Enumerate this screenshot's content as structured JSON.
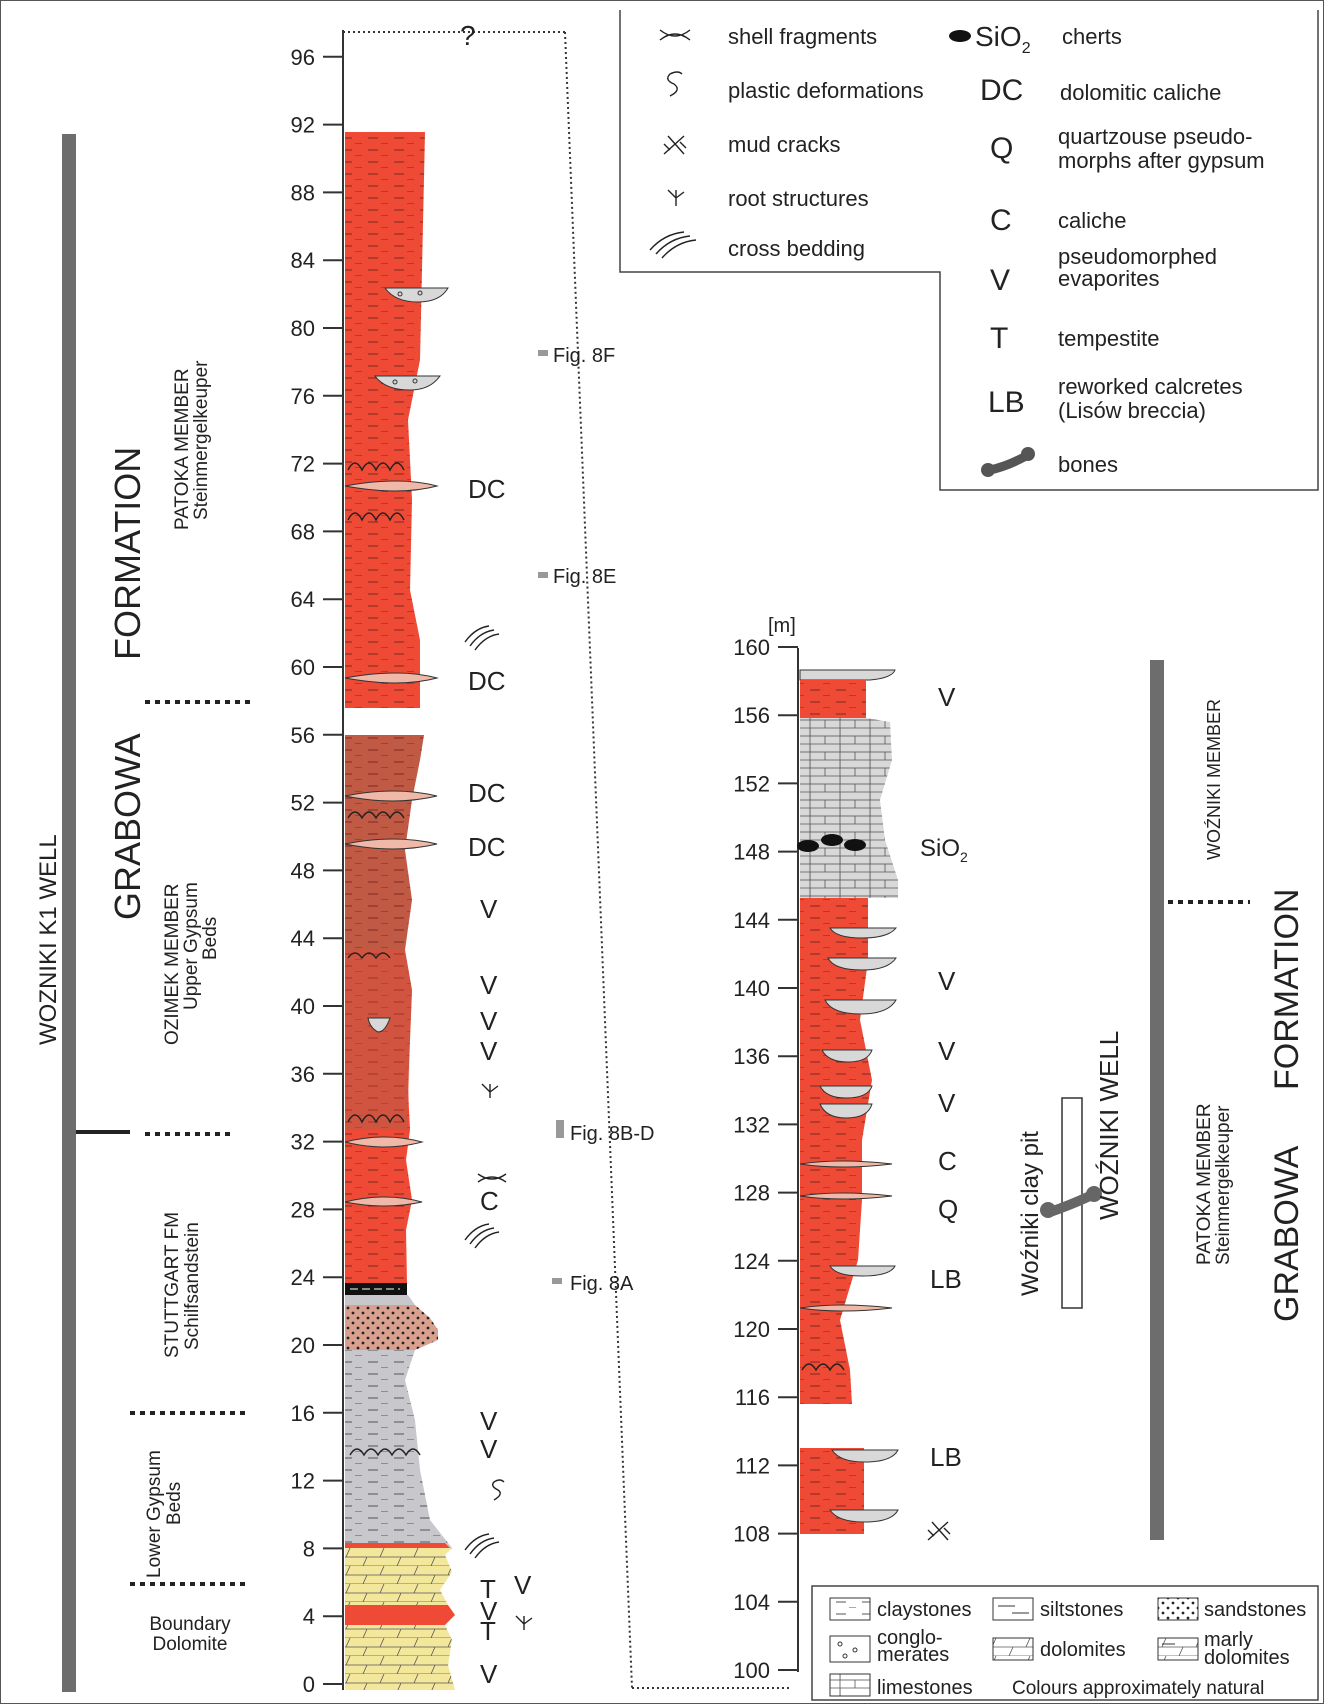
{
  "column1": {
    "scale": [
      "0",
      "4",
      "8",
      "12",
      "16",
      "20",
      "24",
      "28",
      "32",
      "36",
      "40",
      "44",
      "48",
      "52",
      "56",
      "60",
      "64",
      "68",
      "72",
      "76",
      "80",
      "84",
      "88",
      "92",
      "96"
    ],
    "question_mark": "?",
    "well_name": "WOZNIKI  K1 WELL",
    "formation_word1": "GRABOWA",
    "formation_word2": "FORMATION",
    "patoka_line1": "PATOKA MEMBER",
    "patoka_line2": "Steinmergelkeuper",
    "ozimek_line1": "OZIMEK MEMBER",
    "ozimek_line2": "Upper Gypsum",
    "ozimek_line3": "Beds",
    "stuttgart_line1": "STUTTGART FM",
    "stuttgart_line2": "Schilfsandstein",
    "lower_line1": "Lower Gypsum",
    "lower_line2": "Beds",
    "boundary_line1": "Boundary",
    "boundary_line2": "Dolomite",
    "symbols": [
      "DC",
      "DC",
      "DC",
      "DC",
      "V",
      "V",
      "V",
      "V",
      "C",
      "V",
      "V",
      "T",
      "V",
      "V",
      "T",
      "V"
    ],
    "fig_8f": "Fig. 8F",
    "fig_8e": "Fig. 8E",
    "fig_8bd": "Fig. 8B-D",
    "fig_8a": "Fig. 8A"
  },
  "column2": {
    "unit": "[m]",
    "scale": [
      "100",
      "104",
      "108",
      "112",
      "116",
      "120",
      "124",
      "128",
      "132",
      "136",
      "140",
      "144",
      "148",
      "152",
      "156",
      "160"
    ],
    "symbols": [
      "V",
      "V",
      "V",
      "V",
      "C",
      "Q",
      "LB",
      "LB"
    ],
    "sio2": "SiO",
    "sio2_sub": "2",
    "clay_pit": "Woźniki clay pit",
    "well_name": "WOŹNIKI  WELL",
    "wozniki_member": "WOŹNIKI MEMBER",
    "patoka_line1": "PATOKA MEMBER",
    "patoka_line2": "Steinmergelkeuper",
    "formation_word1": "GRABOWA",
    "formation_word2": "FORMATION"
  },
  "legend": {
    "shell": "shell fragments",
    "plastic": "plastic deformations",
    "mud": "mud cracks",
    "root": "root structures",
    "cross": "cross bedding",
    "sio2": "SiO",
    "sio2_sub": "2",
    "cherts": "cherts",
    "dc_code": "DC",
    "dc_text": "dolomitic caliche",
    "q_code": "Q",
    "q_text1": "quartzouse pseudo-",
    "q_text2": "morphs after gypsum",
    "c_code": "C",
    "c_text": "caliche",
    "v_code": "V",
    "v_text1": "pseudomorphed",
    "v_text2": "evaporites",
    "t_code": "T",
    "t_text": "tempestite",
    "lb_code": "LB",
    "lb_text1": "reworked calcretes",
    "lb_text2": "(Lisów breccia)",
    "bones": "bones"
  },
  "lithology": {
    "claystones": "claystones",
    "siltstones": "siltstones",
    "sandstones": "sandstones",
    "conglo1": "conglo-",
    "conglo2": "merates",
    "dolomites": "dolomites",
    "marly1": "marly",
    "marly2": "dolomites",
    "limestones": "limestones",
    "note": "Colours approximately natural"
  },
  "colors": {
    "red": "#ee4a35",
    "brown": "#c05a45",
    "pink_brown": "#d9a090",
    "grey": "#c8c8cc",
    "yellow": "#f3e79c",
    "lens_grey": "#d8d8d8",
    "pink_lens": "#f0b8a8",
    "bar": "#6d6d6d"
  }
}
